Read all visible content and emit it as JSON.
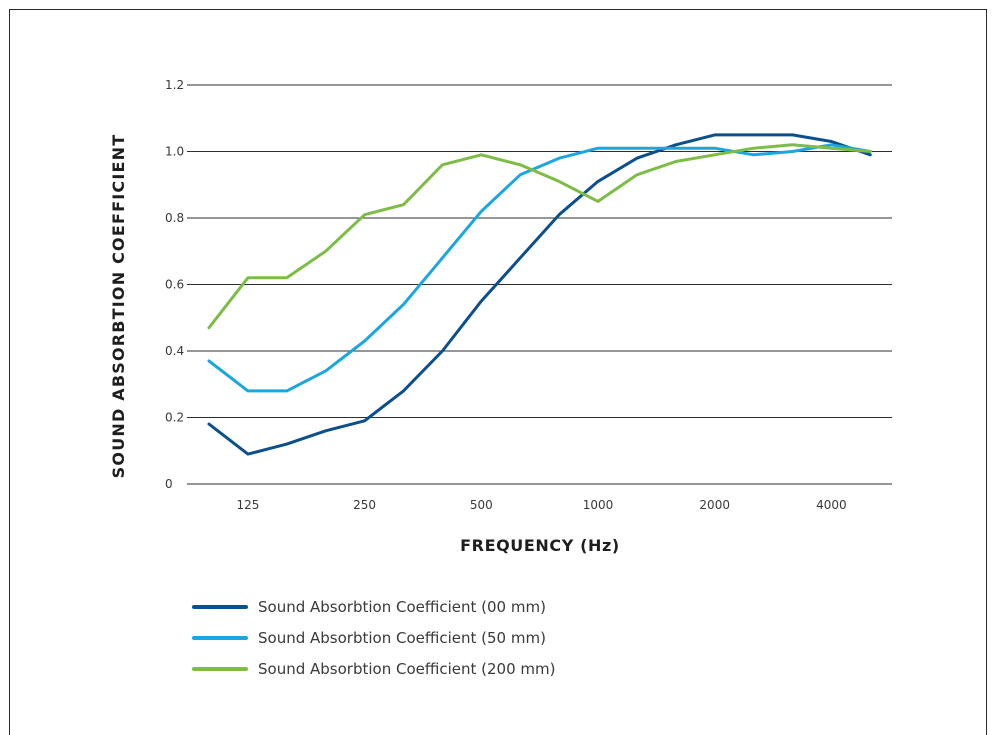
{
  "chart_data": {
    "type": "line",
    "xlabel": "FREQUENCY (Hz)",
    "ylabel": "SOUND ABSORBTION COEFFICIENT",
    "ylim": [
      0,
      1.2
    ],
    "y_ticks": [
      "0",
      "0.2",
      "0.4",
      "0.6",
      "0.8",
      "1.0",
      "1.2"
    ],
    "x": [
      "100",
      "125",
      "160",
      "200",
      "250",
      "315",
      "400",
      "500",
      "630",
      "800",
      "1000",
      "1250",
      "1600",
      "2000",
      "2500",
      "3150",
      "4000",
      "5000"
    ],
    "x_tick_labels": [
      "125",
      "250",
      "500",
      "1000",
      "2000",
      "4000"
    ],
    "grid": true,
    "legend_position": "bottom",
    "series": [
      {
        "name": "Sound Absorbtion Coefficient (00 mm)",
        "color": "#0b4f8c",
        "values": [
          0.18,
          0.09,
          0.12,
          0.16,
          0.19,
          0.28,
          0.4,
          0.55,
          0.68,
          0.81,
          0.91,
          0.98,
          1.02,
          1.05,
          1.05,
          1.05,
          1.03,
          0.99
        ]
      },
      {
        "name": "Sound Absorbtion Coefficient (50 mm)",
        "color": "#1aa7e0",
        "values": [
          0.37,
          0.28,
          0.28,
          0.34,
          0.43,
          0.54,
          0.68,
          0.82,
          0.93,
          0.98,
          1.01,
          1.01,
          1.01,
          1.01,
          0.99,
          1.0,
          1.02,
          1.0
        ]
      },
      {
        "name": "Sound Absorbtion Coefficient (200 mm)",
        "color": "#7dbd45",
        "values": [
          0.47,
          0.62,
          0.62,
          0.7,
          0.81,
          0.84,
          0.96,
          0.99,
          0.96,
          0.91,
          0.85,
          0.93,
          0.97,
          0.99,
          1.01,
          1.02,
          1.01,
          1.0
        ]
      }
    ]
  }
}
